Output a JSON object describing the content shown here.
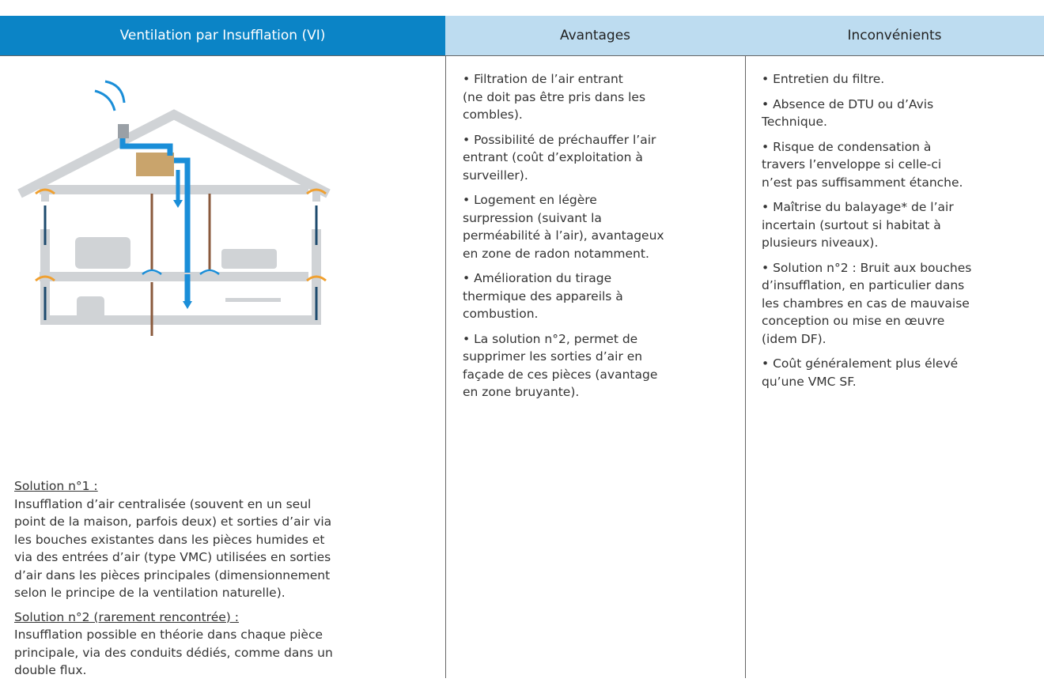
{
  "header": {
    "col1": "Ventilation par Insufflation (VI)",
    "col2": "Avantages",
    "col3": "Inconvénients"
  },
  "solutions": [
    {
      "title": "Solution n°1 :",
      "lines": [
        "Insufflation d’air centralisée (souvent en un seul",
        "point de la maison, parfois deux) et sorties d’air via",
        "les bouches existantes dans les pièces humides et",
        "via des entrées d’air (type VMC) utilisées en sorties",
        "d’air dans les pièces principales (dimensionnement",
        "selon le principe de la ventilation naturelle)."
      ]
    },
    {
      "title": "Solution n°2 (rarement rencontrée) :",
      "lines": [
        "Insufflation possible en théorie dans chaque pièce",
        "principale, via des conduits dédiés, comme dans un",
        "double flux."
      ]
    }
  ],
  "advantages": [
    [
      "• Filtration de l’air entrant",
      "(ne doit pas être pris dans les",
      "combles)."
    ],
    [
      "• Possibilité de préchauffer l’air",
      "entrant (coût d’exploitation à",
      "surveiller)."
    ],
    [
      "• Logement en légère",
      "surpression (suivant la",
      "perméabilité à l’air), avantageux",
      "en zone de radon notamment."
    ],
    [
      "• Amélioration du tirage",
      "thermique des appareils à",
      "combustion."
    ],
    [
      "• La solution n°2, permet  de",
      "supprimer les sorties d’air en",
      "façade de ces pièces (avantage",
      "en zone bruyante)."
    ]
  ],
  "drawbacks": [
    [
      "• Entretien du filtre."
    ],
    [
      "• Absence de DTU ou d’Avis",
      "Technique."
    ],
    [
      "• Risque de condensation à",
      "travers l’enveloppe si celle-ci",
      "n’est pas suffisamment étanche."
    ],
    [
      "• Maîtrise du balayage* de l’air",
      "incertain (surtout si habitat à",
      "plusieurs niveaux)."
    ],
    [
      "• Solution n°2 : Bruit aux bouches",
      "d’insufflation, en particulier dans",
      "les chambres en cas de mauvaise",
      "conception ou mise en œuvre",
      "(idem DF)."
    ],
    [
      "• Coût généralement plus élevé",
      "qu’une VMC SF."
    ]
  ]
}
